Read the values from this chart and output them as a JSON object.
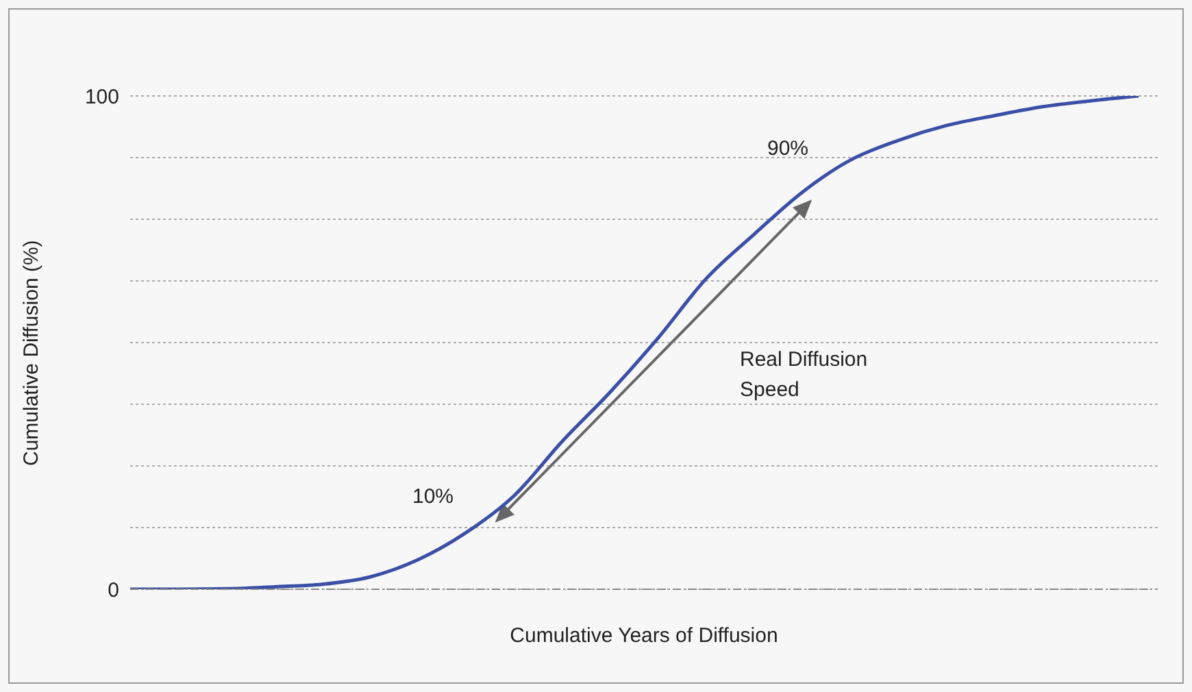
{
  "chart_data": {
    "type": "line",
    "xlabel": "Cumulative Years of Diffusion",
    "ylabel": "Cumulative Diffusion (%)",
    "categories": [
      null,
      null,
      null,
      null,
      null,
      null,
      null,
      null,
      null,
      null,
      null,
      null,
      null,
      null,
      null,
      null,
      null,
      null,
      null,
      null,
      null,
      null
    ],
    "series": [
      {
        "color": "#3b4fa6",
        "values": [
          0,
          0,
          0.1,
          0.5,
          1,
          2.5,
          6,
          11.5,
          19,
          30,
          40,
          51,
          63,
          72,
          80.5,
          87,
          91,
          94,
          96,
          97.8,
          99,
          100
        ]
      }
    ],
    "ylim": [
      0,
      100
    ],
    "yticks": [
      0,
      {
        "value": 12.5,
        "label": null
      },
      {
        "value": 25,
        "label": null
      },
      {
        "value": 37.5,
        "label": null
      },
      {
        "value": 50,
        "label": null
      },
      {
        "value": 62.5,
        "label": null
      },
      {
        "value": 75,
        "label": null
      },
      {
        "value": 87.5,
        "label": null
      },
      100
    ],
    "tick_labels": "y",
    "grid": "y",
    "marker": "none",
    "line_style": "solid",
    "annotations": [
      "90%",
      "10%",
      "Real Diffusion Speed"
    ]
  }
}
